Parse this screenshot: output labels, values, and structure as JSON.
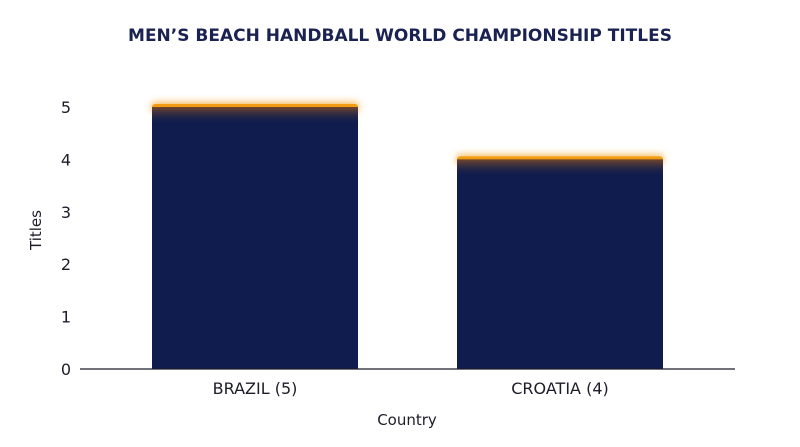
{
  "chart_data": {
    "type": "bar",
    "title": "MEN’S BEACH HANDBALL WORLD CHAMPIONSHIP TITLES",
    "categories": [
      "BRAZIL (5)",
      "CROATIA (4)"
    ],
    "values": [
      5,
      4
    ],
    "xlabel": "Country",
    "ylabel": "Titles",
    "ylim": [
      0,
      5
    ],
    "yticks": [
      "0",
      "1",
      "2",
      "3",
      "4",
      "5"
    ],
    "grid": false,
    "legend": "none",
    "colors": {
      "bar": "#0f1c4d",
      "bar_glow": "#f39c12",
      "title": "#1a2251",
      "axis": "#1c1c2a"
    }
  }
}
